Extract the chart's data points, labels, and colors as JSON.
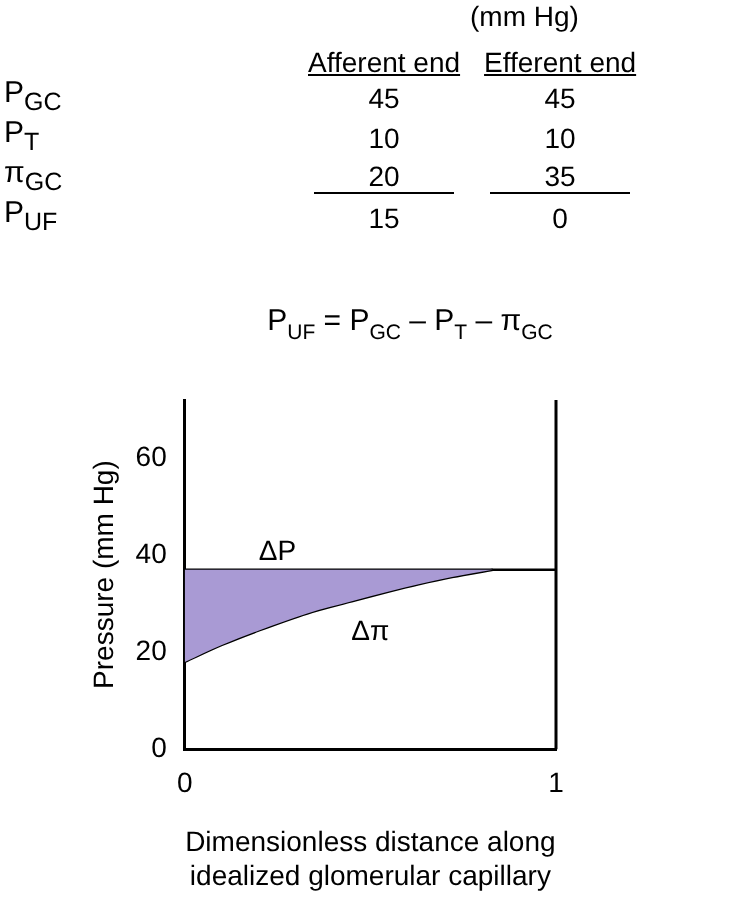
{
  "chart_data": [
    {
      "type": "heatmap",
      "title": "(mm Hg)",
      "categories": [
        "Afferent end",
        "Efferent end"
      ],
      "y_categories": [
        "P$_{GC}$",
        "P$_{T}$",
        "π$_{GC}$",
        "P$_{UF}$"
      ],
      "cells": [
        [
          45,
          45
        ],
        [
          10,
          10
        ],
        [
          20,
          35
        ],
        [
          15,
          0
        ]
      ],
      "data_labels": true
    },
    {
      "type": "line",
      "title": "P$_{UF}$ = P$_{GC}$ – P$_{T}$ – π$_{GC}$",
      "xlabel": "Dimensionless distance along idealized glomerular capillary",
      "ylabel": "Pressure (mm Hg)",
      "xlim": [
        0,
        1
      ],
      "xticks": [
        0,
        1
      ],
      "ylim": [
        0,
        72
      ],
      "yticks": [
        0,
        20,
        40,
        60
      ],
      "grid": false,
      "legend": false,
      "marker": "none",
      "series": [
        {
          "name": "ΔP",
          "color": "#000000",
          "x": [
            0,
            1
          ],
          "values": [
            37,
            37
          ]
        },
        {
          "name": "Δπ",
          "color": "#000000",
          "x": [
            0,
            0.1,
            0.2,
            0.33,
            0.45,
            0.55,
            0.63,
            0.72,
            0.83
          ],
          "values": [
            18,
            21.5,
            24.5,
            28,
            30.5,
            32.5,
            34,
            35.5,
            37
          ],
          "lower": [
            18,
            21.5,
            24.5,
            28,
            30.5,
            32.5,
            34,
            35.5,
            37
          ],
          "upper": [
            37,
            37,
            37,
            37,
            37,
            37,
            37,
            37,
            37
          ]
        }
      ]
    }
  ]
}
